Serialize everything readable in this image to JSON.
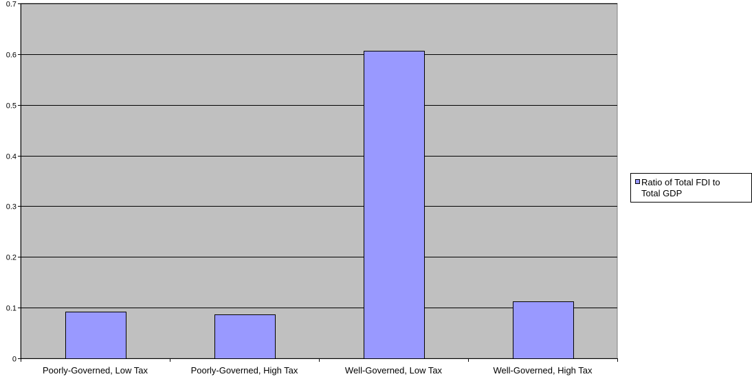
{
  "chart_data": {
    "type": "bar",
    "categories": [
      "Poorly-Governed, Low Tax",
      "Poorly-Governed, High Tax",
      "Well-Governed, Low Tax",
      "Well-Governed, High Tax"
    ],
    "series": [
      {
        "name": "Ratio of Total FDI to Total GDP",
        "values": [
          0.092,
          0.086,
          0.607,
          0.113
        ]
      }
    ],
    "title": "",
    "xlabel": "",
    "ylabel": "",
    "ylim": [
      0,
      0.7
    ],
    "yticks": [
      "0",
      "0.1",
      "0.2",
      "0.3",
      "0.4",
      "0.5",
      "0.6",
      "0.7"
    ],
    "grid": true,
    "legend_position": "right",
    "legend_lines": [
      "Ratio of Total FDI to",
      "Total GDP"
    ],
    "colors": {
      "plot_background": "#c0c0c0",
      "bar_fill": "#9999ff",
      "bar_stroke": "#000000",
      "gridline": "#000000"
    }
  }
}
